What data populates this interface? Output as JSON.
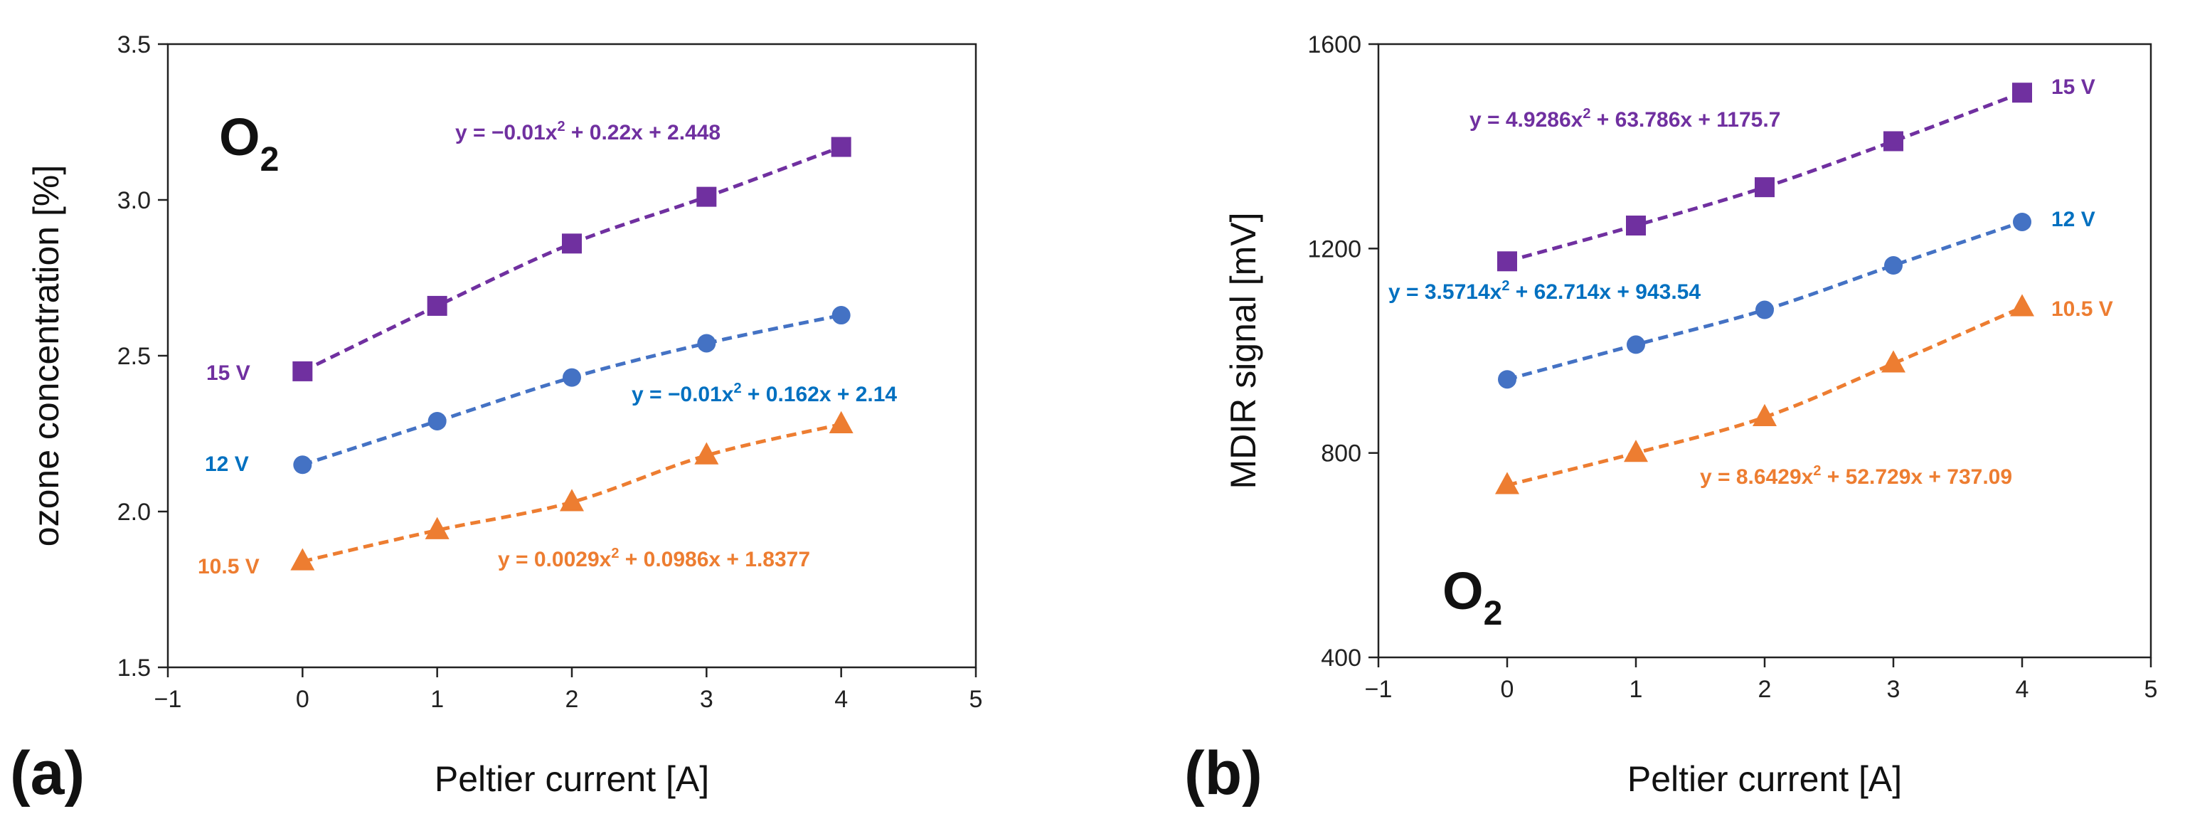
{
  "chart_data": [
    {
      "type": "scatter",
      "panel_label": "(a)",
      "gas_label": "O",
      "gas_subscript": "2",
      "xlabel": "Peltier current [A]",
      "ylabel": "ozone concentration [%]",
      "xlim": [
        -1,
        5
      ],
      "ylim": [
        1.5,
        3.5
      ],
      "xticks": [
        "−1",
        "0",
        "1",
        "2",
        "3",
        "4",
        "5"
      ],
      "yticks": [
        "1.5",
        "2.0",
        "2.5",
        "3.0",
        "3.5"
      ],
      "grid": false,
      "trendlines": "dashed quadratic fit",
      "series": [
        {
          "name": "15 V",
          "marker": "square",
          "color": "#7030A0",
          "x": [
            0,
            1,
            2,
            3,
            4
          ],
          "y": [
            2.45,
            2.66,
            2.86,
            3.01,
            3.17
          ],
          "equation": {
            "prefix": "y = −0.01x",
            "power": "2",
            "suffix": " + 0.22x + 2.448"
          }
        },
        {
          "name": "12 V",
          "marker": "circle",
          "color": "#4472C4",
          "label_color": "#0070C0",
          "x": [
            0,
            1,
            2,
            3,
            4
          ],
          "y": [
            2.15,
            2.29,
            2.43,
            2.54,
            2.63
          ],
          "equation": {
            "prefix": "y = −0.01x",
            "power": "2",
            "suffix": " + 0.162x + 2.14"
          }
        },
        {
          "name": "10.5 V",
          "marker": "triangle",
          "color": "#ED7D31",
          "x": [
            0,
            1,
            2,
            3,
            4
          ],
          "y": [
            1.84,
            1.94,
            2.03,
            2.18,
            2.28
          ],
          "equation": {
            "prefix": "y = 0.0029x",
            "power": "2",
            "suffix": " + 0.0986x + 1.8377"
          }
        }
      ]
    },
    {
      "type": "scatter",
      "panel_label": "(b)",
      "gas_label": "O",
      "gas_subscript": "2",
      "xlabel": "Peltier current [A]",
      "ylabel": "MDIR signal [mV]",
      "xlim": [
        -1,
        5
      ],
      "ylim": [
        400,
        1600
      ],
      "xticks": [
        "−1",
        "0",
        "1",
        "2",
        "3",
        "4",
        "5"
      ],
      "yticks": [
        "400",
        "800",
        "1200",
        "1600"
      ],
      "grid": false,
      "trendlines": "dashed quadratic fit",
      "series": [
        {
          "name": "15 V",
          "marker": "square",
          "color": "#7030A0",
          "x": [
            0,
            1,
            2,
            3,
            4
          ],
          "y": [
            1175,
            1245,
            1320,
            1410,
            1505
          ],
          "equation": {
            "prefix": "y = 4.9286x",
            "power": "2",
            "suffix": " + 63.786x + 1175.7"
          }
        },
        {
          "name": "12 V",
          "marker": "circle",
          "color": "#4472C4",
          "label_color": "#0070C0",
          "x": [
            0,
            1,
            2,
            3,
            4
          ],
          "y": [
            944,
            1012,
            1080,
            1167,
            1252
          ],
          "equation": {
            "prefix": "y = 3.5714x",
            "power": "2",
            "suffix": " + 62.714x + 943.54"
          }
        },
        {
          "name": "10.5 V",
          "marker": "triangle",
          "color": "#ED7D31",
          "x": [
            0,
            1,
            2,
            3,
            4
          ],
          "y": [
            737,
            800,
            870,
            975,
            1085
          ],
          "equation": {
            "prefix": "y = 8.6429x",
            "power": "2",
            "suffix": " + 52.729x + 737.09"
          }
        }
      ]
    }
  ]
}
